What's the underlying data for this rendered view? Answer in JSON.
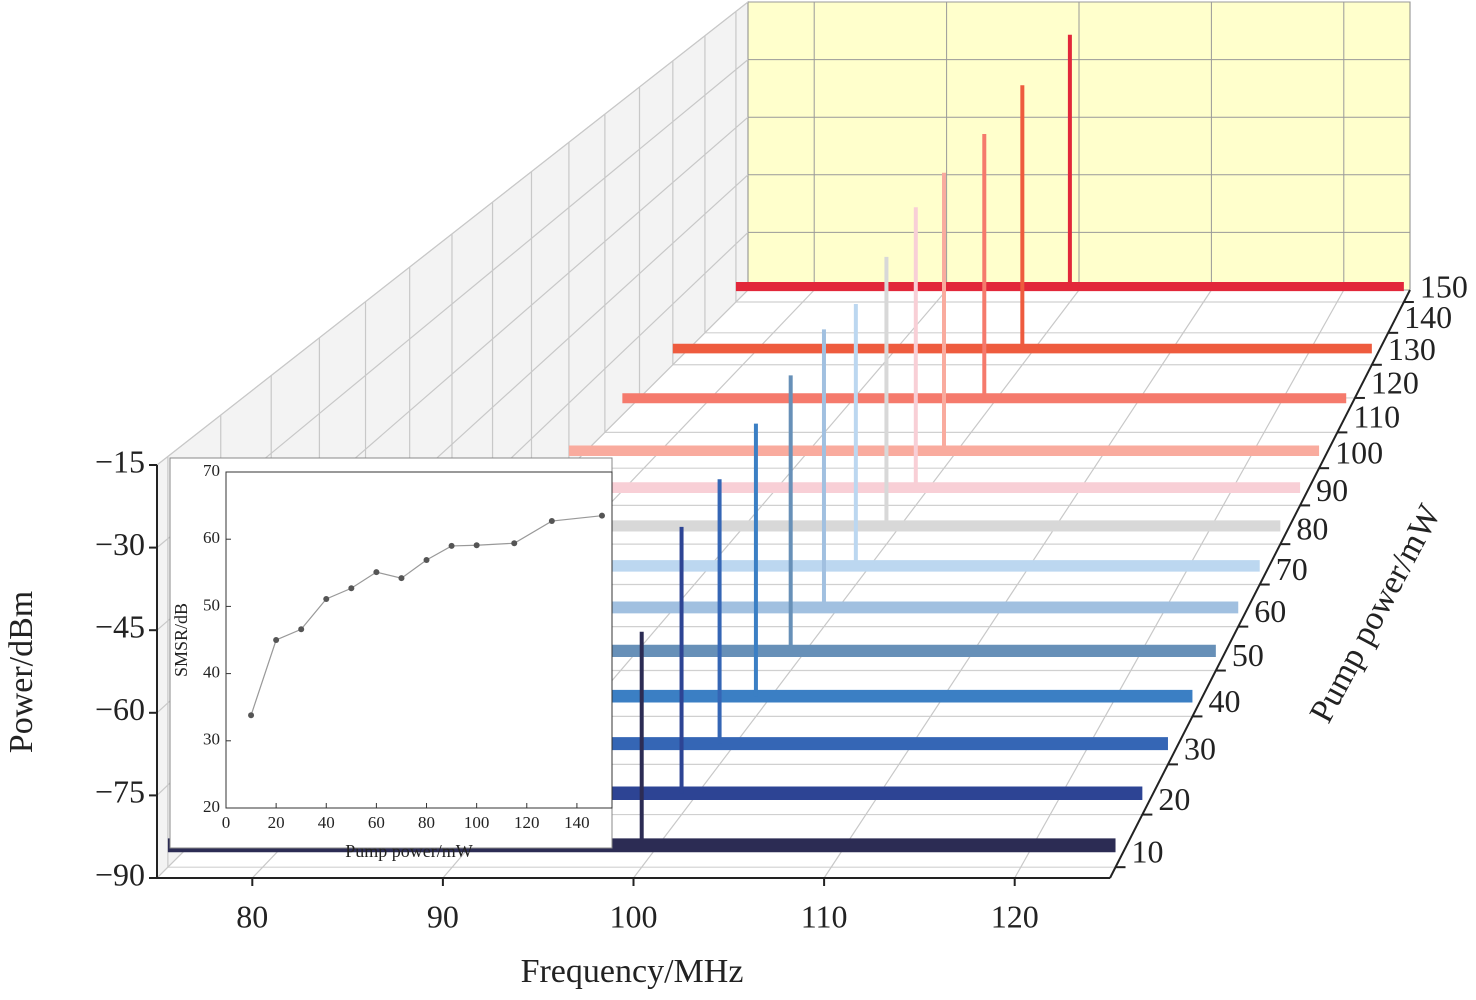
{
  "chart_data": [
    {
      "type": "waterfall3d",
      "xlabel": "Frequency/MHz",
      "ylabel": "Power/dBm",
      "zlabel": "Pump power/mW",
      "xlim": [
        75,
        125
      ],
      "ylim": [
        -90,
        -15
      ],
      "zlim": [
        8,
        154
      ],
      "xticks": [
        80,
        90,
        100,
        110,
        120
      ],
      "yticks": [
        {
          "value": -15,
          "label": "−15"
        },
        {
          "value": -30,
          "label": "−30"
        },
        {
          "value": -45,
          "label": "−45"
        },
        {
          "value": -60,
          "label": "−60"
        },
        {
          "value": -75,
          "label": "−75"
        },
        {
          "value": -90,
          "label": "−90"
        }
      ],
      "zticks": [
        10,
        20,
        30,
        40,
        50,
        60,
        70,
        80,
        90,
        100,
        110,
        120,
        130,
        140,
        150
      ],
      "grid": true,
      "wall_color": "#f3f3f3",
      "back_color": "#ffffcc",
      "series": [
        {
          "z": 10,
          "color": "#2c2c54",
          "noise_floor": -86,
          "peak_frequency": 100,
          "peak_power": -47
        },
        {
          "z": 20,
          "color": "#2d4494",
          "noise_floor": -86,
          "peak_frequency": 100,
          "peak_power": -36
        },
        {
          "z": 30,
          "color": "#3566b5",
          "noise_floor": -86,
          "peak_frequency": 100,
          "peak_power": -35
        },
        {
          "z": 40,
          "color": "#3b7fc4",
          "noise_floor": -86,
          "peak_frequency": 100,
          "peak_power": -32
        },
        {
          "z": 50,
          "color": "#6790b8",
          "noise_floor": -86,
          "peak_frequency": 100,
          "peak_power": -30
        },
        {
          "z": 60,
          "color": "#a1c0e0",
          "noise_floor": -86,
          "peak_frequency": 100,
          "peak_power": -28
        },
        {
          "z": 70,
          "color": "#bcd7f0",
          "noise_floor": -86,
          "peak_frequency": 100,
          "peak_power": -30
        },
        {
          "z": 80,
          "color": "#d8d8d8",
          "noise_floor": -86,
          "peak_frequency": 100,
          "peak_power": -27
        },
        {
          "z": 90,
          "color": "#f8cfd6",
          "noise_floor": -86,
          "peak_frequency": 100,
          "peak_power": -23
        },
        {
          "z": 100,
          "color": "#f9ab9e",
          "noise_floor": -86,
          "peak_frequency": 100,
          "peak_power": -22
        },
        {
          "z": 115,
          "color": "#f57a6c",
          "noise_floor": -86,
          "peak_frequency": 100,
          "peak_power": -23
        },
        {
          "z": 130,
          "color": "#ee5b3e",
          "noise_floor": -86,
          "peak_frequency": 100,
          "peak_power": -21
        },
        {
          "z": 150,
          "color": "#e2273a",
          "noise_floor": -86,
          "peak_frequency": 100,
          "peak_power": -21
        }
      ]
    },
    {
      "type": "line",
      "xlabel": "Pump power/mW",
      "ylabel": "SMSR/dB",
      "x": [
        10,
        20,
        30,
        40,
        50,
        60,
        70,
        80,
        90,
        100,
        115,
        130,
        150
      ],
      "values": [
        33.8,
        45,
        46.6,
        51.1,
        52.7,
        55.1,
        54.2,
        56.9,
        59,
        59.1,
        59.4,
        62.7,
        63.5
      ],
      "xlim": [
        0,
        154
      ],
      "ylim": [
        20,
        70
      ],
      "xticks": [
        0,
        20,
        40,
        60,
        80,
        100,
        120,
        140
      ],
      "yticks": [
        20,
        30,
        40,
        50,
        60,
        70
      ],
      "color": "#555555",
      "line_color": "#999999"
    }
  ]
}
